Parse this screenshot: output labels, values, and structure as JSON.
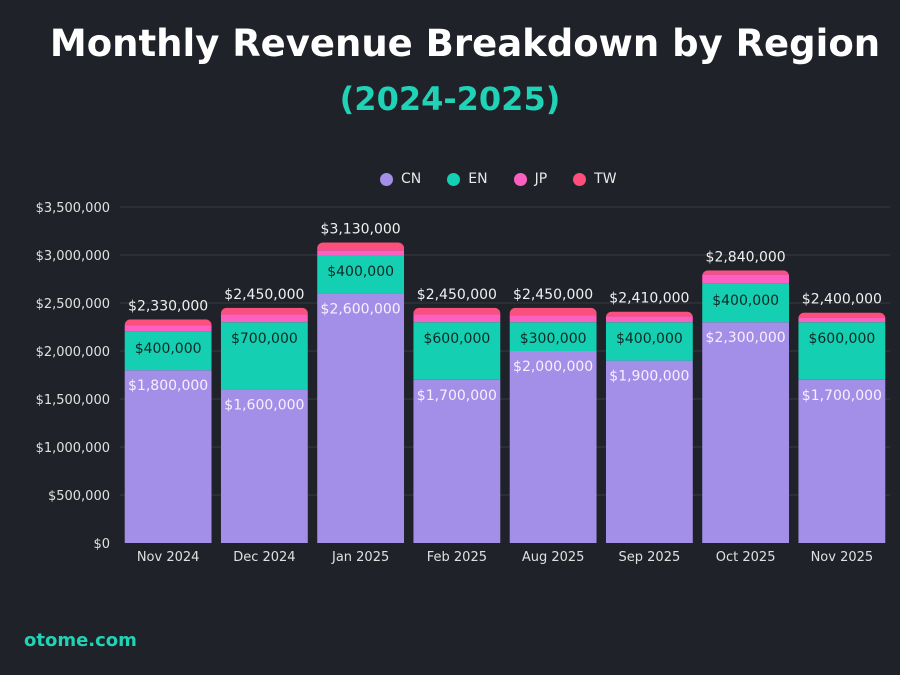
{
  "chart_data": {
    "type": "bar",
    "stacked": true,
    "title": "Monthly Revenue Breakdown by Region",
    "subtitle": "(2024-2025)",
    "categories": [
      "Nov 2024",
      "Dec 2024",
      "Jan 2025",
      "Feb 2025",
      "Aug 2025",
      "Sep 2025",
      "Oct 2025",
      "Nov 2025"
    ],
    "series": [
      {
        "name": "CN",
        "color": "#a48fe8",
        "values": [
          1800000,
          1600000,
          2600000,
          1700000,
          2000000,
          1900000,
          2300000,
          1700000
        ]
      },
      {
        "name": "EN",
        "color": "#14cfb1",
        "values": [
          400000,
          700000,
          400000,
          600000,
          300000,
          400000,
          400000,
          600000
        ]
      },
      {
        "name": "JP",
        "color": "#fb5fc0",
        "values": [
          70000,
          80000,
          50000,
          80000,
          70000,
          60000,
          100000,
          50000
        ]
      },
      {
        "name": "TW",
        "color": "#fb4f7d",
        "values": [
          60000,
          70000,
          80000,
          70000,
          80000,
          50000,
          40000,
          50000
        ]
      }
    ],
    "totals": [
      "$2,330,000",
      "$2,450,000",
      "$3,130,000",
      "$2,450,000",
      "$2,450,000",
      "$2,410,000",
      "$2,840,000",
      "$2,400,000"
    ],
    "cn_labels": [
      "$1,800,000",
      "$1,600,000",
      "$2,600,000",
      "$1,700,000",
      "$2,000,000",
      "$1,900,000",
      "$2,300,000",
      "$1,700,000"
    ],
    "en_labels": [
      "$400,000",
      "$700,000",
      "$400,000",
      "$600,000",
      "$300,000",
      "$400,000",
      "$400,000",
      "$600,000"
    ],
    "yticks": [
      "$0",
      "$500,000",
      "$1,000,000",
      "$1,500,000",
      "$2,000,000",
      "$2,500,000",
      "$3,000,000",
      "$3,500,000"
    ],
    "ylim": [
      0,
      3500000
    ],
    "grid": true,
    "legend": "top"
  },
  "footer": "otome.com"
}
